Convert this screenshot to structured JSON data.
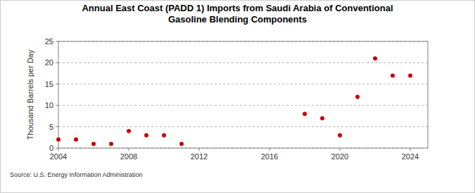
{
  "chart_data": {
    "type": "scatter",
    "title": "Annual East Coast (PADD 1) Imports from Saudi Arabia of Conventional Gasoline Blending Components",
    "y_label": "Thousand Barrels per Day",
    "source": "Source: U.S. Energy Information Administration",
    "x": [
      2004,
      2005,
      2006,
      2007,
      2008,
      2009,
      2010,
      2011,
      2018,
      2019,
      2020,
      2021,
      2022,
      2023,
      2024
    ],
    "values": [
      2,
      2,
      1,
      1,
      4,
      3,
      3,
      1,
      8,
      7,
      3,
      12,
      21,
      17,
      17
    ],
    "color": "#cc0000",
    "marker": "circle",
    "xlim": [
      2004,
      2025
    ],
    "xticks": [
      2004,
      2008,
      2012,
      2016,
      2020,
      2024
    ],
    "ylim": [
      0,
      25
    ],
    "yticks": [
      0,
      5,
      10,
      15,
      20,
      25
    ],
    "grid": true
  }
}
